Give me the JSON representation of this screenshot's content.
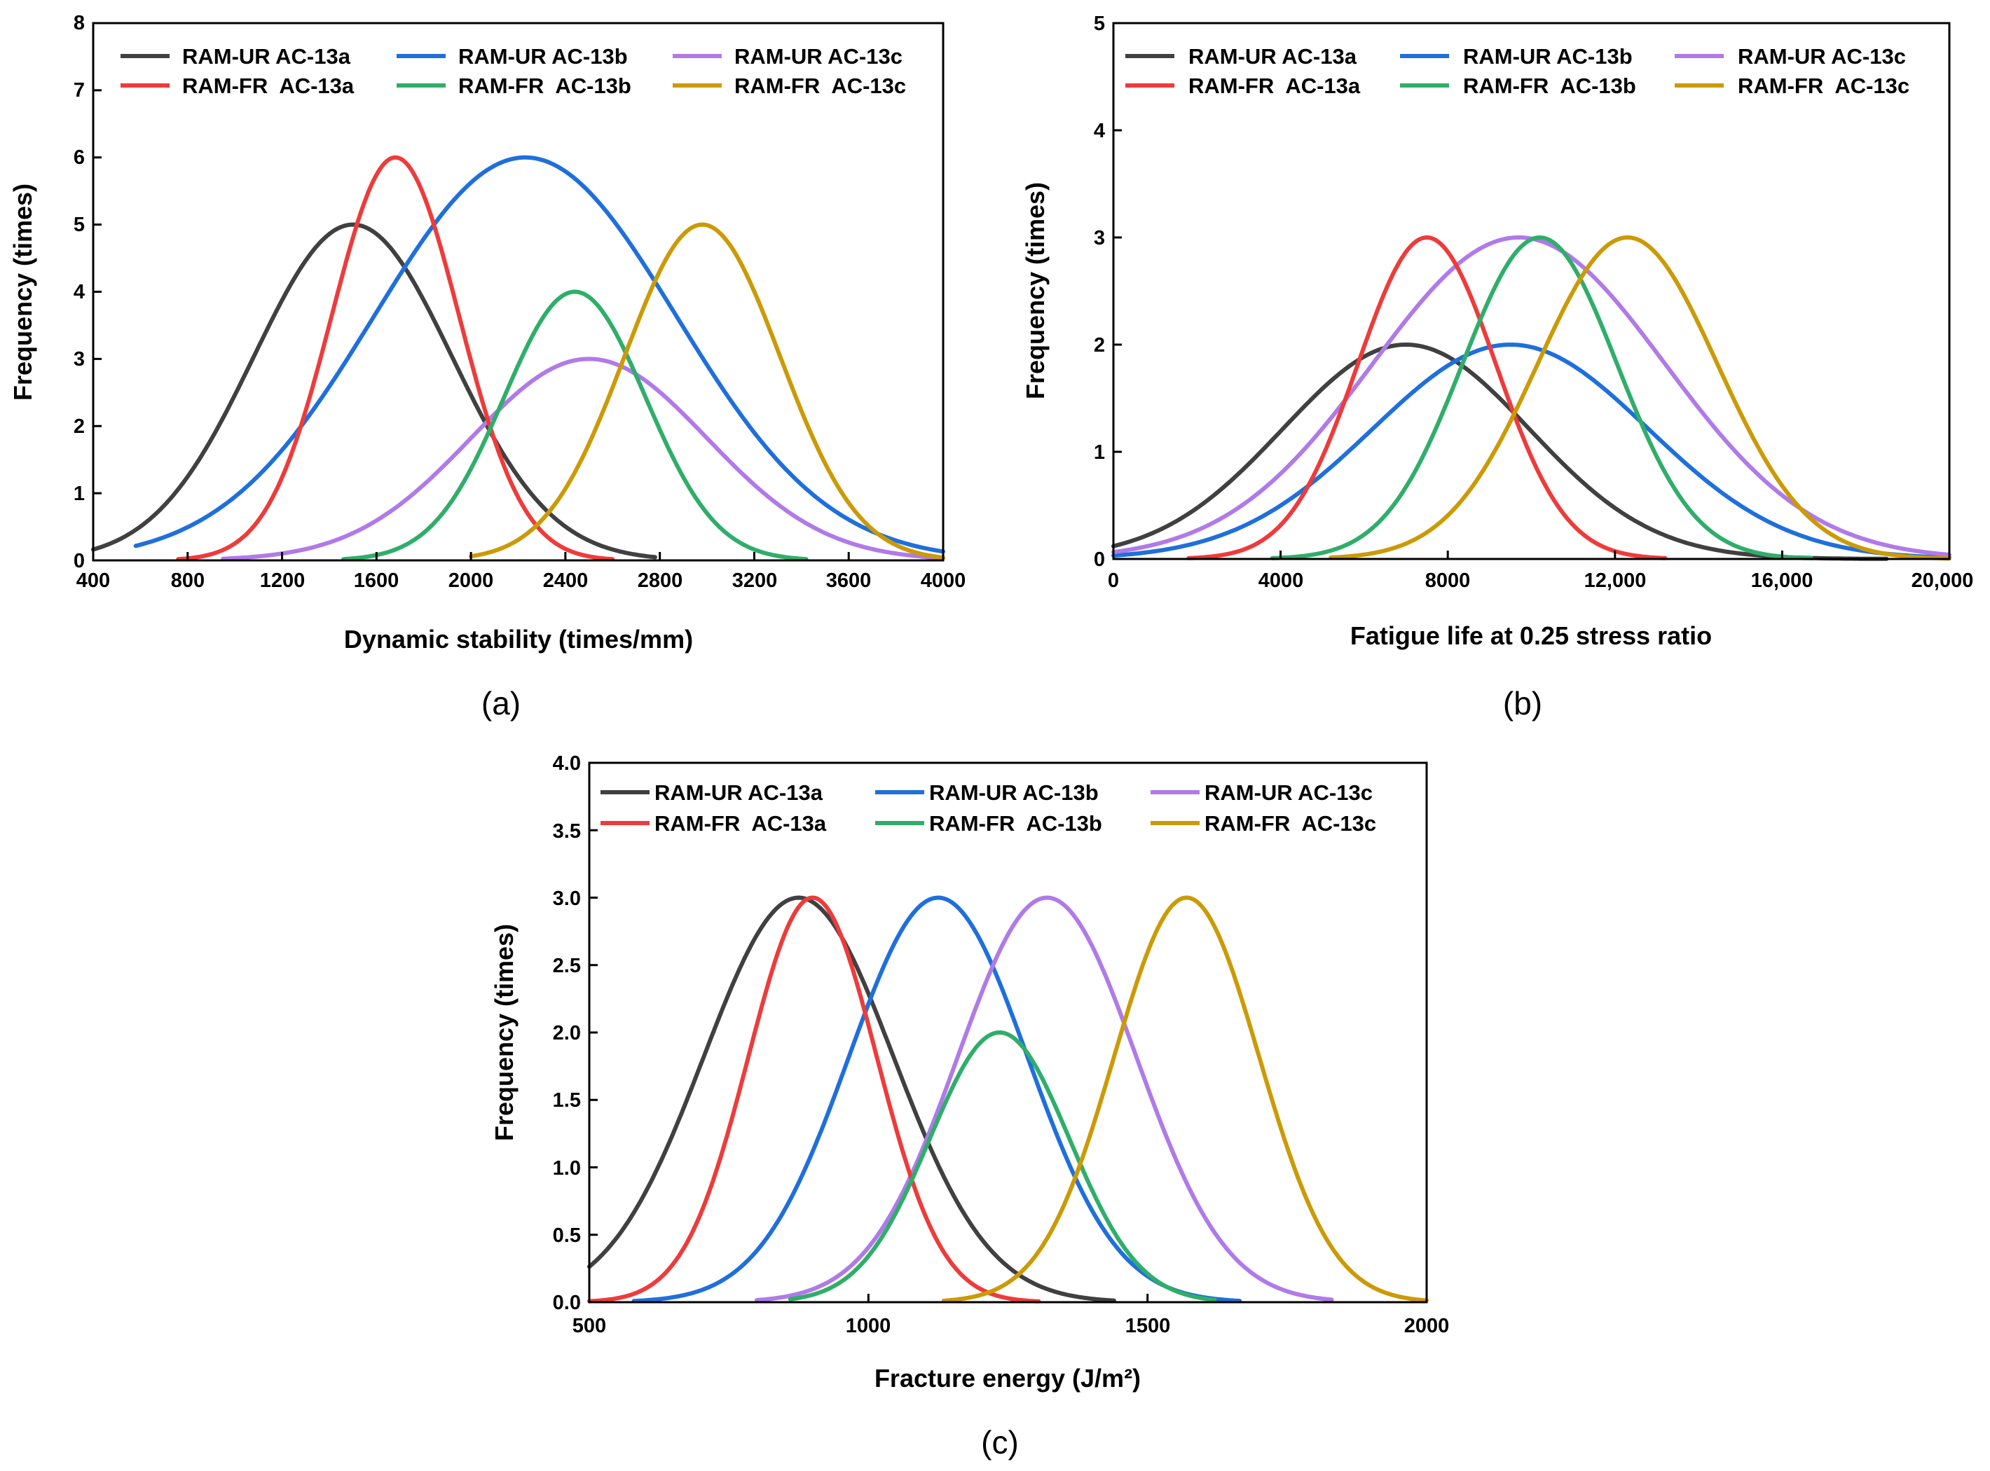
{
  "chart_data": [
    {
      "type": "line",
      "panel_label": "(a)",
      "xlabel": "Dynamic stability (times/mm)",
      "ylabel": "Frequency (times)",
      "xlim": [
        400,
        4000
      ],
      "ylim": [
        0,
        8
      ],
      "x_tick_labels": [
        "400",
        "800",
        "1200",
        "1600",
        "2000",
        "2400",
        "2800",
        "3200",
        "3600",
        "4000"
      ],
      "y_tick_labels": [
        "0",
        "1",
        "2",
        "3",
        "4",
        "5",
        "6",
        "7",
        "8"
      ],
      "legend": [
        "RAM-UR AC-13a",
        "RAM-UR AC-13b",
        "RAM-UR AC-13c",
        "RAM-FR  AC-13a",
        "RAM-FR  AC-13b",
        "RAM-FR  AC-13c"
      ],
      "series": [
        {
          "name": "RAM-UR AC-13a",
          "color": "#404040",
          "peak_x": 1500,
          "peak_y": 5,
          "sigma": 420,
          "x_range": [
            400,
            2780
          ]
        },
        {
          "name": "RAM-UR AC-13b",
          "color": "#1f6fdc",
          "peak_x": 2230,
          "peak_y": 6,
          "sigma": 640,
          "x_range": [
            580,
            4000
          ]
        },
        {
          "name": "RAM-UR AC-13c",
          "color": "#b07ae8",
          "peak_x": 2500,
          "peak_y": 3,
          "sigma": 500,
          "x_range": [
            950,
            4000
          ]
        },
        {
          "name": "RAM-FR  AC-13a",
          "color": "#ee3b3b",
          "peak_x": 1680,
          "peak_y": 6,
          "sigma": 270,
          "x_range": [
            760,
            2600
          ]
        },
        {
          "name": "RAM-FR  AC-13b",
          "color": "#2fae6a",
          "peak_x": 2440,
          "peak_y": 4,
          "sigma": 300,
          "x_range": [
            1460,
            3420
          ]
        },
        {
          "name": "RAM-FR  AC-13c",
          "color": "#cc9a06",
          "peak_x": 2980,
          "peak_y": 5,
          "sigma": 330,
          "x_range": [
            2000,
            4000
          ]
        }
      ]
    },
    {
      "type": "line",
      "panel_label": "(b)",
      "xlabel": "Fatigue life at 0.25 stress ratio",
      "ylabel": "Frequency (times)",
      "xlim": [
        0,
        20000
      ],
      "ylim": [
        0,
        5
      ],
      "x_tick_labels": [
        "0",
        "4000",
        "8000",
        "12,000",
        "16,000",
        "20,000"
      ],
      "y_tick_labels": [
        "0",
        "1",
        "2",
        "3",
        "4",
        "5"
      ],
      "legend": [
        "RAM-UR AC-13a",
        "RAM-UR AC-13b",
        "RAM-UR AC-13c",
        "RAM-FR  AC-13a",
        "RAM-FR  AC-13b",
        "RAM-FR  AC-13c"
      ],
      "series": [
        {
          "name": "RAM-UR AC-13a",
          "color": "#404040",
          "peak_x": 7000,
          "peak_y": 2,
          "sigma": 2950,
          "x_range": [
            0,
            18500
          ]
        },
        {
          "name": "RAM-UR AC-13b",
          "color": "#1f6fdc",
          "peak_x": 9500,
          "peak_y": 2,
          "sigma": 3300,
          "x_range": [
            0,
            20000
          ]
        },
        {
          "name": "RAM-UR AC-13c",
          "color": "#b07ae8",
          "peak_x": 9700,
          "peak_y": 3,
          "sigma": 3500,
          "x_range": [
            0,
            20000
          ]
        },
        {
          "name": "RAM-FR  AC-13a",
          "color": "#ee3b3b",
          "peak_x": 7500,
          "peak_y": 3,
          "sigma": 1650,
          "x_range": [
            1800,
            13200
          ]
        },
        {
          "name": "RAM-FR  AC-13b",
          "color": "#2fae6a",
          "peak_x": 10200,
          "peak_y": 3,
          "sigma": 1850,
          "x_range": [
            3800,
            16700
          ]
        },
        {
          "name": "RAM-FR  AC-13c",
          "color": "#cc9a06",
          "peak_x": 12300,
          "peak_y": 3,
          "sigma": 2150,
          "x_range": [
            5200,
            20000
          ]
        }
      ]
    },
    {
      "type": "line",
      "panel_label": "(c)",
      "xlabel": "Fracture energy (J/m²)",
      "ylabel": "Frequency (times)",
      "xlim": [
        500,
        2000
      ],
      "ylim": [
        0,
        4
      ],
      "x_tick_labels": [
        "500",
        "1000",
        "1500",
        "2000"
      ],
      "y_tick_labels": [
        "0.0",
        "0.5",
        "1.0",
        "1.5",
        "2.0",
        "2.5",
        "3.0",
        "3.5",
        "4.0"
      ],
      "legend": [
        "RAM-UR AC-13a",
        "RAM-UR AC-13b",
        "RAM-UR AC-13c",
        "RAM-FR  AC-13a",
        "RAM-FR  AC-13b",
        "RAM-FR  AC-13c"
      ],
      "series": [
        {
          "name": "RAM-UR AC-13a",
          "color": "#404040",
          "peak_x": 875,
          "peak_y": 3,
          "sigma": 170,
          "x_range": [
            500,
            1440
          ]
        },
        {
          "name": "RAM-UR AC-13b",
          "color": "#1f6fdc",
          "peak_x": 1125,
          "peak_y": 3,
          "sigma": 160,
          "x_range": [
            580,
            1665
          ]
        },
        {
          "name": "RAM-UR AC-13c",
          "color": "#b07ae8",
          "peak_x": 1320,
          "peak_y": 3,
          "sigma": 160,
          "x_range": [
            800,
            1830
          ]
        },
        {
          "name": "RAM-FR  AC-13a",
          "color": "#ee3b3b",
          "peak_x": 900,
          "peak_y": 3,
          "sigma": 115,
          "x_range": [
            500,
            1305
          ]
        },
        {
          "name": "RAM-FR  AC-13b",
          "color": "#2fae6a",
          "peak_x": 1235,
          "peak_y": 2,
          "sigma": 125,
          "x_range": [
            860,
            1620
          ]
        },
        {
          "name": "RAM-FR  AC-13c",
          "color": "#cc9a06",
          "peak_x": 1570,
          "peak_y": 3,
          "sigma": 130,
          "x_range": [
            1135,
            2000
          ]
        }
      ]
    }
  ]
}
